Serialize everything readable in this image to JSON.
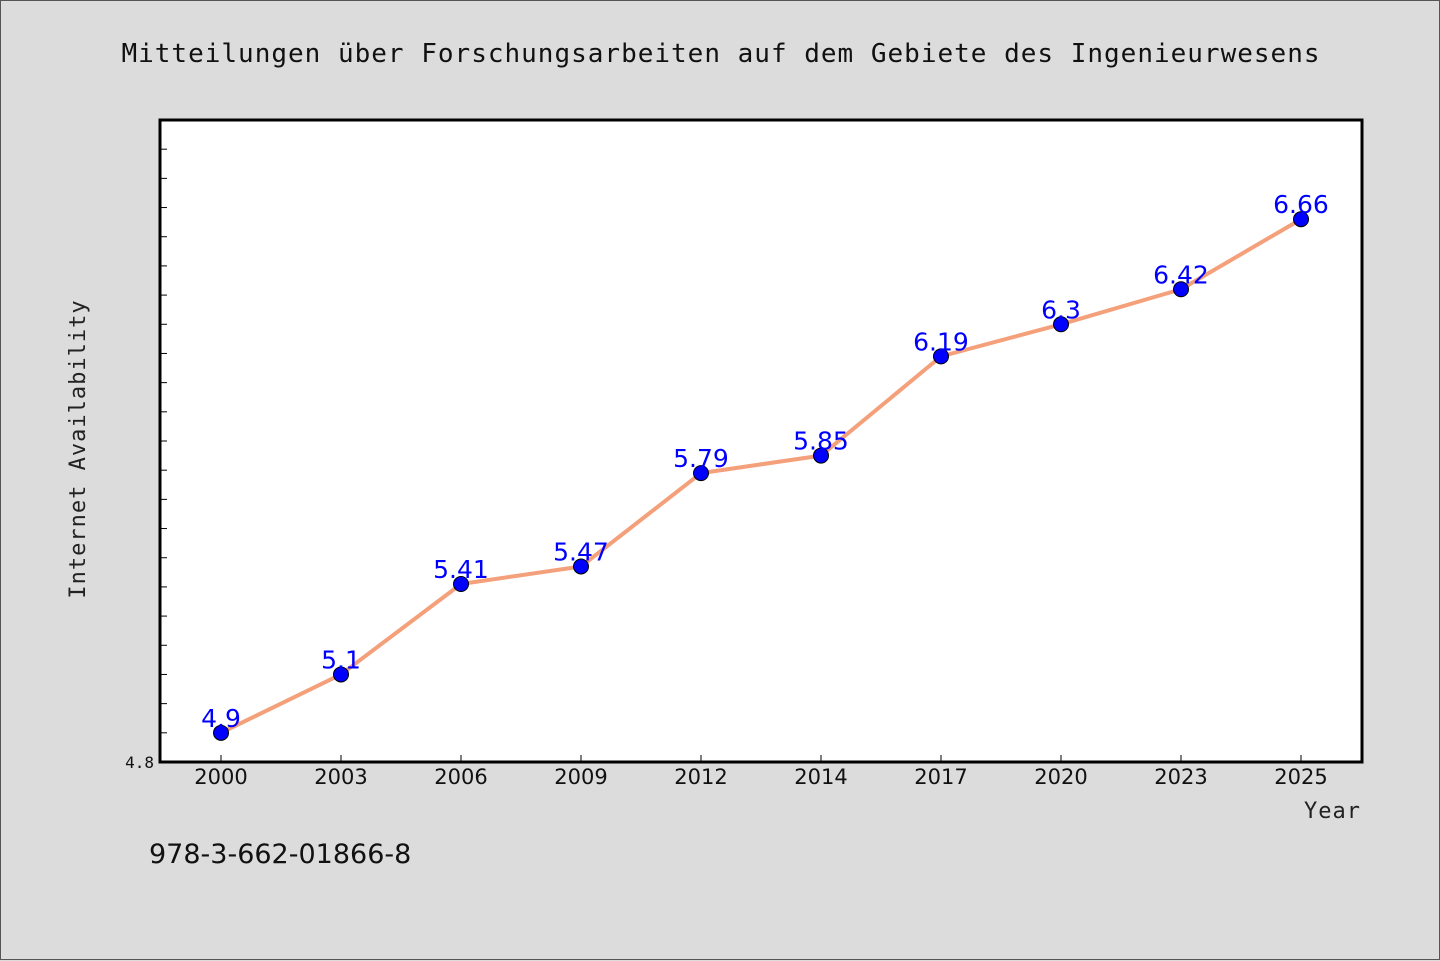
{
  "colors": {
    "background": "#dcdcdc",
    "plot_background": "#ffffff",
    "line": "#f4a07a",
    "marker": "#0000ff",
    "label": "#0000ff"
  },
  "footer": {
    "text": "978-3-662-01866-8"
  },
  "chart_data": {
    "type": "line",
    "title": "Mitteilungen über Forschungsarbeiten auf dem Gebiete des Ingenieurwesens",
    "xlabel": "Year",
    "ylabel": "Internet Availability",
    "categories": [
      "2000",
      "2003",
      "2006",
      "2009",
      "2012",
      "2014",
      "2017",
      "2020",
      "2023",
      "2025"
    ],
    "series": [
      {
        "values": [
          4.9,
          5.1,
          5.41,
          5.47,
          5.79,
          5.85,
          6.19,
          6.3,
          6.42,
          6.66
        ]
      }
    ],
    "data_labels": [
      "4.9",
      "5.1",
      "5.41",
      "5.47",
      "5.79",
      "5.85",
      "6.19",
      "6.3",
      "6.42",
      "6.66"
    ],
    "ylim": [
      4.8,
      7.0
    ],
    "y_tick_labels": [
      "4.8"
    ],
    "grid": false,
    "legend": "none"
  }
}
